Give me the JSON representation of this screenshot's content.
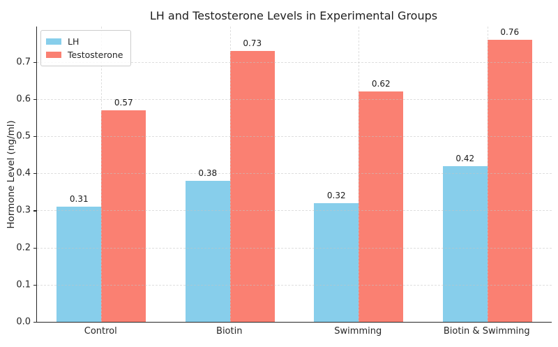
{
  "chart_data": {
    "type": "bar",
    "title": "LH and Testosterone Levels in Experimental Groups",
    "xlabel": "",
    "ylabel": "Hormone Level (ng/ml)",
    "categories": [
      "Control",
      "Biotin",
      "Swimming",
      "Biotin & Swimming"
    ],
    "series": [
      {
        "name": "LH",
        "color": "#87CEEB",
        "values": [
          0.31,
          0.38,
          0.32,
          0.42
        ]
      },
      {
        "name": "Testosterone",
        "color": "#FA8072",
        "values": [
          0.57,
          0.73,
          0.62,
          0.76
        ]
      }
    ],
    "bar_labels": [
      "0.31",
      "0.57",
      "0.38",
      "0.73",
      "0.32",
      "0.62",
      "0.42",
      "0.76"
    ],
    "ylim": [
      0,
      0.795
    ],
    "yticks": [
      0.0,
      0.1,
      0.2,
      0.3,
      0.4,
      0.5,
      0.6,
      0.7
    ],
    "grid": true,
    "grid_style": "dashed",
    "legend_position": "upper left",
    "colors": {
      "background": "#ffffff",
      "axis": "#262626",
      "gridline": "#c4c4c4",
      "text": "#1a1a1a"
    }
  }
}
